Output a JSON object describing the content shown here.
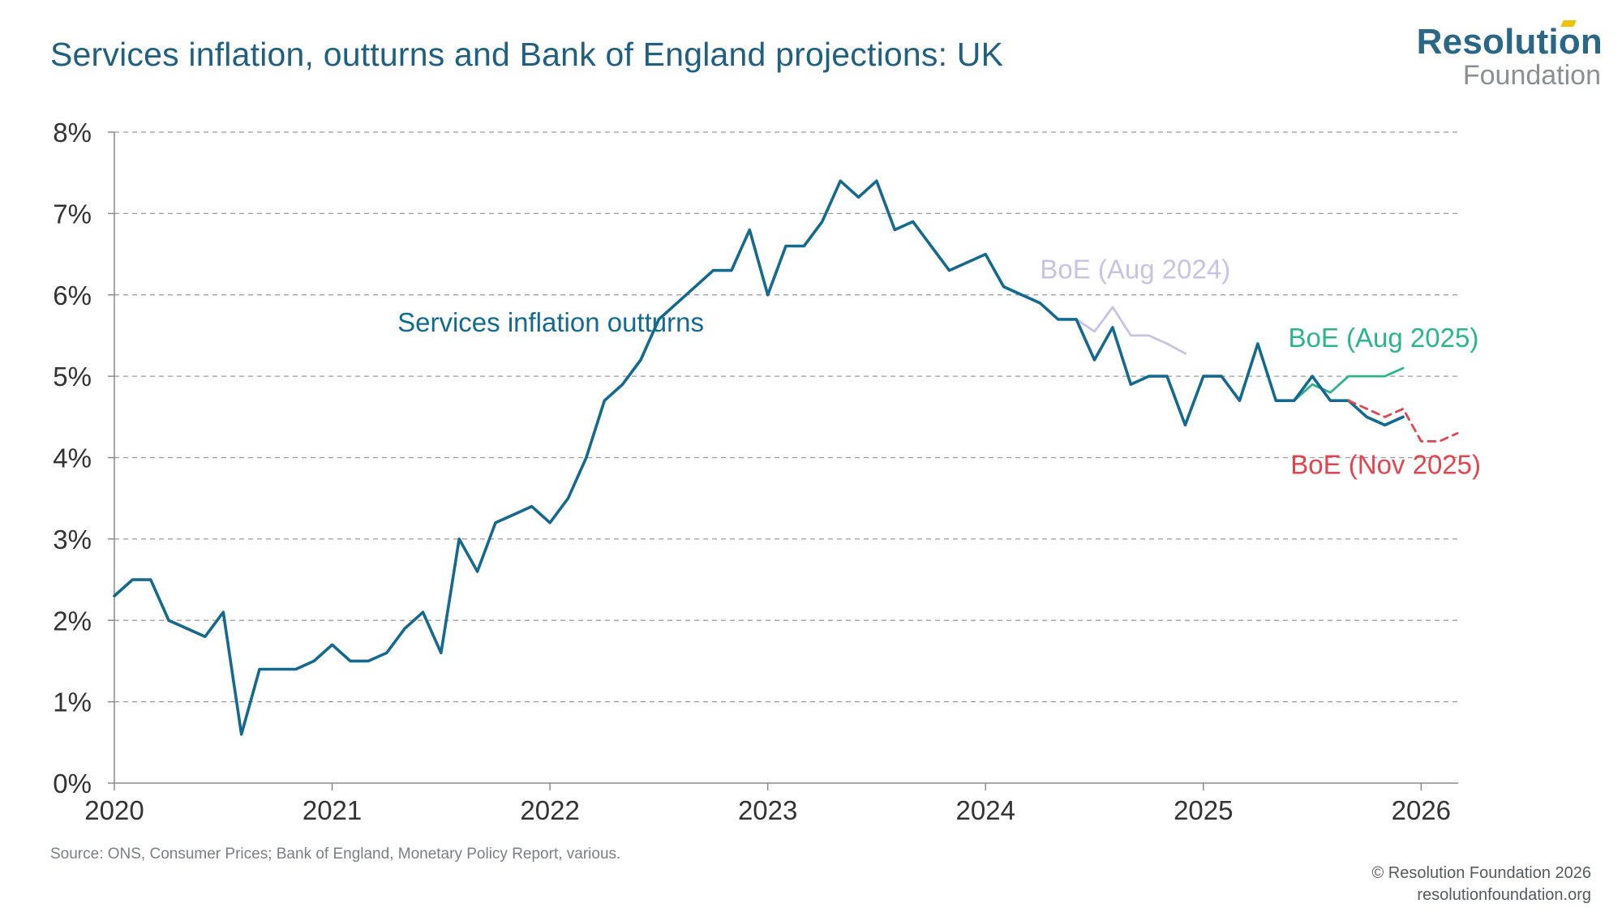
{
  "title": "Services inflation, outturns and Bank of England projections: UK",
  "logo": {
    "line1": "Resolution",
    "line2": "Foundation"
  },
  "source": "Source: ONS, Consumer Prices; Bank of England, Monetary Policy Report, various.",
  "copyright": {
    "line1": "© Resolution Foundation 2026",
    "line2": "resolutionfoundation.org"
  },
  "chart_data": {
    "type": "line",
    "title": "Services inflation, outturns and Bank of England projections: UK",
    "xlabel": "",
    "ylabel": "",
    "xlim": [
      2020,
      2026.17
    ],
    "ylim": [
      0,
      8
    ],
    "x_ticks": [
      {
        "value": 2020,
        "label": "2020"
      },
      {
        "value": 2021,
        "label": "2021"
      },
      {
        "value": 2022,
        "label": "2022"
      },
      {
        "value": 2023,
        "label": "2023"
      },
      {
        "value": 2024,
        "label": "2024"
      },
      {
        "value": 2025,
        "label": "2025"
      },
      {
        "value": 2026,
        "label": "2026"
      }
    ],
    "y_ticks": [
      {
        "value": 0,
        "label": "0%"
      },
      {
        "value": 1,
        "label": "1%"
      },
      {
        "value": 2,
        "label": "2%"
      },
      {
        "value": 3,
        "label": "3%"
      },
      {
        "value": 4,
        "label": "4%"
      },
      {
        "value": 5,
        "label": "5%"
      },
      {
        "value": 6,
        "label": "6%"
      },
      {
        "value": 7,
        "label": "7%"
      },
      {
        "value": 8,
        "label": "8%"
      }
    ],
    "grid": true,
    "series": [
      {
        "name": "Services inflation outturns",
        "label": "Services inflation outturns",
        "label_anchor": [
          2021.3,
          5.55
        ],
        "color": "#14698f",
        "dashed": false,
        "start": 2020.0,
        "step": 0.083333,
        "values": [
          2.3,
          2.5,
          2.5,
          2.0,
          1.9,
          1.8,
          2.1,
          0.6,
          1.4,
          1.4,
          1.4,
          1.5,
          1.7,
          1.5,
          1.5,
          1.6,
          1.9,
          2.1,
          1.6,
          3.0,
          2.6,
          3.2,
          3.3,
          3.4,
          3.2,
          3.5,
          4.0,
          4.7,
          4.9,
          5.2,
          5.7,
          5.9,
          6.1,
          6.3,
          6.3,
          6.8,
          6.0,
          6.6,
          6.6,
          6.9,
          7.4,
          7.2,
          7.4,
          6.8,
          6.9,
          6.6,
          6.3,
          6.4,
          6.5,
          6.1,
          6.0,
          5.9,
          5.7,
          5.7,
          5.2,
          5.6,
          4.9,
          5.0,
          5.0,
          4.4,
          5.0,
          5.0,
          4.7,
          5.4,
          4.7,
          4.7,
          5.0,
          4.7,
          4.7,
          4.5,
          4.4,
          4.5
        ]
      },
      {
        "name": "BoE (Aug 2024)",
        "label": "BoE (Aug 2024)",
        "label_anchor": [
          2024.25,
          6.2
        ],
        "color": "#c9c2e6",
        "dashed": false,
        "start": 2024.417,
        "step": 0.083333,
        "values": [
          5.7,
          5.55,
          5.85,
          5.5,
          5.5,
          5.4,
          5.28
        ]
      },
      {
        "name": "BoE (Aug 2025)",
        "label": "BoE (Aug 2025)",
        "label_anchor": [
          2025.39,
          5.36
        ],
        "color": "#2bb58d",
        "dashed": false,
        "start": 2025.25,
        "step": 0.083333,
        "values": [
          5.4,
          4.7,
          4.7,
          4.9,
          4.8,
          5.0,
          5.0,
          5.0,
          5.1
        ]
      },
      {
        "name": "BoE (Nov 2025)",
        "label": "BoE (Nov 2025)",
        "label_anchor": [
          2025.4,
          3.8
        ],
        "color": "#e2444e",
        "dashed": true,
        "start": 2025.667,
        "step": 0.083333,
        "values": [
          4.7,
          4.6,
          4.5,
          4.6,
          4.2,
          4.2,
          4.3
        ]
      }
    ]
  }
}
